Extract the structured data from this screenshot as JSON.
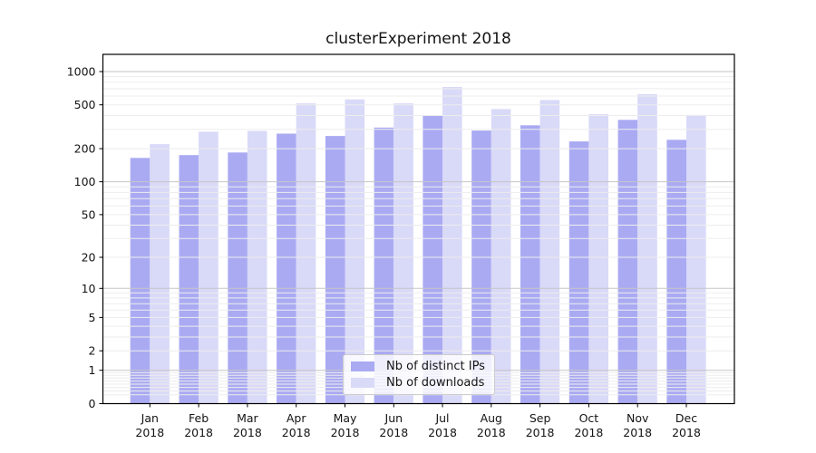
{
  "chart_data": {
    "type": "bar",
    "title": "clusterExperiment 2018",
    "categories": [
      "Jan 2018",
      "Feb 2018",
      "Mar 2018",
      "Apr 2018",
      "May 2018",
      "Jun 2018",
      "Jul 2018",
      "Aug 2018",
      "Sep 2018",
      "Oct 2018",
      "Nov 2018",
      "Dec 2018"
    ],
    "series": [
      {
        "name": "Nb of distinct IPs",
        "color": "#aaaaf3",
        "values": [
          165,
          175,
          185,
          274,
          261,
          311,
          398,
          292,
          326,
          233,
          365,
          241
        ]
      },
      {
        "name": "Nb of downloads",
        "color": "#d9d9f8",
        "values": [
          220,
          285,
          290,
          515,
          560,
          515,
          725,
          457,
          552,
          411,
          625,
          405
        ]
      }
    ],
    "xlabel": "",
    "ylabel": "",
    "yscale": "log1p",
    "ylim": [
      0,
      1430
    ],
    "y_ticks": [
      0,
      1,
      2,
      5,
      10,
      20,
      50,
      100,
      200,
      500,
      1000
    ],
    "grid": "both",
    "legend_position": "lower center inside"
  },
  "colors": {
    "background": "#ffffff",
    "grid_major": "#c6c6c6",
    "grid_minor": "#ededed",
    "spine": "#000000",
    "text": "#141414"
  }
}
